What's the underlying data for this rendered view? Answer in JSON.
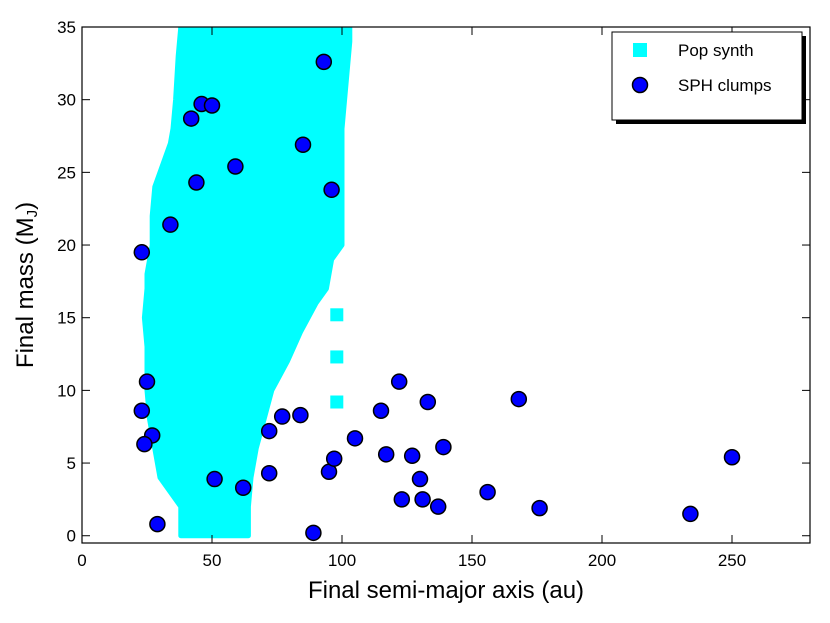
{
  "chart_data": {
    "type": "scatter",
    "xlabel": "Final semi-major axis (au)",
    "ylabel_main": "Final mass (M",
    "ylabel_sub": "J",
    "ylabel_end": ")",
    "xlim": [
      0,
      280
    ],
    "ylim": [
      -0.5,
      35
    ],
    "xticks": [
      0,
      50,
      100,
      150,
      200,
      250
    ],
    "yticks": [
      0,
      5,
      10,
      15,
      20,
      25,
      30,
      35
    ],
    "grid": false,
    "legend_position": "top-right",
    "series": [
      {
        "name": "Pop synth",
        "marker": "square",
        "color": "#00FFFF",
        "points": [
          [
            98,
            15.2
          ],
          [
            98,
            12.3
          ],
          [
            98,
            9.2
          ]
        ],
        "region": {
          "left_boundary": [
            [
              38,
              0
            ],
            [
              38,
              2
            ],
            [
              30,
              4
            ],
            [
              28,
              6
            ],
            [
              26,
              8
            ],
            [
              25,
              10
            ],
            [
              25,
              13
            ],
            [
              24,
              15
            ],
            [
              25,
              17
            ],
            [
              25,
              18
            ],
            [
              27,
              20
            ],
            [
              27,
              22
            ],
            [
              28,
              24
            ],
            [
              30,
              25
            ],
            [
              32,
              26
            ],
            [
              34,
              27
            ],
            [
              35,
              28
            ],
            [
              36,
              30
            ],
            [
              37,
              33
            ],
            [
              38,
              35
            ]
          ],
          "right_boundary": [
            [
              64,
              0
            ],
            [
              64,
              2
            ],
            [
              65,
              4
            ],
            [
              67,
              6
            ],
            [
              70,
              8
            ],
            [
              73,
              10
            ],
            [
              79,
              12
            ],
            [
              84,
              14
            ],
            [
              90,
              16
            ],
            [
              94,
              17
            ],
            [
              95,
              18
            ],
            [
              96,
              19
            ],
            [
              100,
              20
            ],
            [
              100,
              23
            ],
            [
              100,
              26
            ],
            [
              100,
              28
            ],
            [
              101,
              30
            ],
            [
              102,
              32
            ],
            [
              103,
              34
            ],
            [
              103,
              35
            ]
          ]
        }
      },
      {
        "name": "SPH clumps",
        "marker": "circle",
        "color": "#0000FF",
        "points": [
          [
            93,
            32.6
          ],
          [
            46,
            29.7
          ],
          [
            50,
            29.6
          ],
          [
            42,
            28.7
          ],
          [
            85,
            26.9
          ],
          [
            59,
            25.4
          ],
          [
            44,
            24.3
          ],
          [
            96,
            23.8
          ],
          [
            34,
            21.4
          ],
          [
            23,
            19.5
          ],
          [
            25,
            10.6
          ],
          [
            23,
            8.6
          ],
          [
            27,
            6.9
          ],
          [
            24,
            6.3
          ],
          [
            29,
            0.8
          ],
          [
            51,
            3.9
          ],
          [
            62,
            3.3
          ],
          [
            72,
            7.2
          ],
          [
            77,
            8.2
          ],
          [
            84,
            8.3
          ],
          [
            72,
            4.3
          ],
          [
            95,
            4.4
          ],
          [
            97,
            5.3
          ],
          [
            89,
            0.2
          ],
          [
            105,
            6.7
          ],
          [
            115,
            8.6
          ],
          [
            117,
            5.6
          ],
          [
            122,
            10.6
          ],
          [
            123,
            2.5
          ],
          [
            127,
            5.5
          ],
          [
            130,
            3.9
          ],
          [
            131,
            2.5
          ],
          [
            133,
            9.2
          ],
          [
            137,
            2.0
          ],
          [
            139,
            6.1
          ],
          [
            156,
            3.0
          ],
          [
            168,
            9.4
          ],
          [
            176,
            1.9
          ],
          [
            234,
            1.5
          ],
          [
            250,
            5.4
          ]
        ]
      }
    ]
  }
}
